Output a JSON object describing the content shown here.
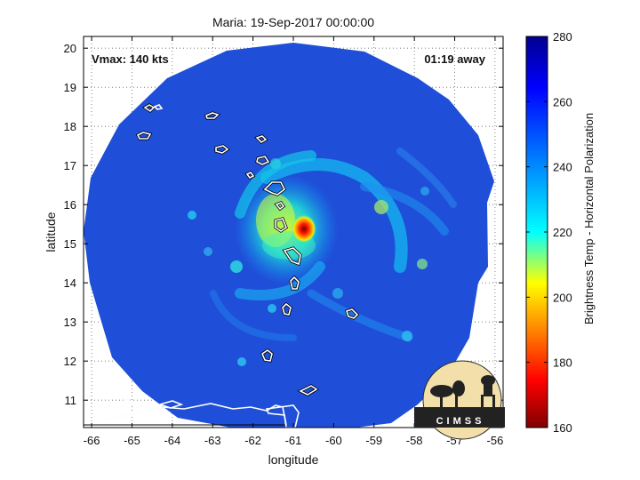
{
  "figure": {
    "title": "Maria: 19-Sep-2017 00:00:00",
    "vmax_label": "Vmax: 140 kts",
    "time_label": "01:19 away",
    "logo_text": "CIMSS"
  },
  "chart_data": {
    "type": "heatmap",
    "title": "Maria: 19-Sep-2017 00:00:00",
    "xlabel": "longitude",
    "ylabel": "latitude",
    "xlim": [
      -66.2,
      -55.8
    ],
    "ylim": [
      10.3,
      20.3
    ],
    "xticks": [
      -66,
      -65,
      -64,
      -63,
      -62,
      -61,
      -60,
      -59,
      -58,
      -57,
      -56
    ],
    "yticks": [
      11,
      12,
      13,
      14,
      15,
      16,
      17,
      18,
      19,
      20
    ],
    "grid": true,
    "colorbar": {
      "label": "Brightness Temp - Horizontal Polarization",
      "min": 160,
      "max": 280,
      "ticks": [
        160,
        180,
        200,
        220,
        240,
        260,
        280
      ],
      "colormap": [
        "#7f0000",
        "#ff0000",
        "#ffff00",
        "#00ffff",
        "#0000ff",
        "#00008f"
      ]
    },
    "storm_center": {
      "lon": -61.0,
      "lat": 15.2,
      "min_tb": 170
    },
    "swath": {
      "center_lon": -61.0,
      "center_lat": 15.3,
      "radius_deg": 5.0,
      "background_tb": 262
    }
  }
}
